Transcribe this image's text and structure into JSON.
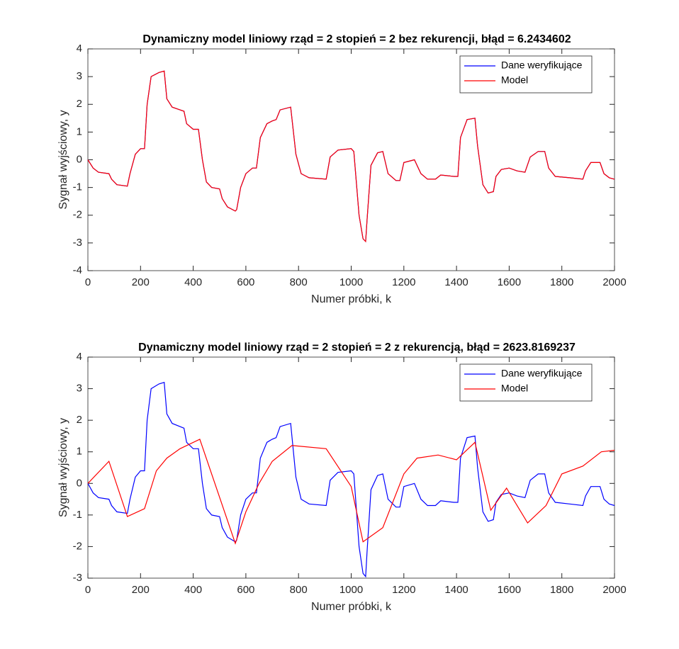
{
  "chart_data": [
    {
      "type": "line",
      "title": "Dynamiczny model liniowy rząd = 2 stopień = 2 bez rekurencji, błąd = 6.2434602",
      "xlabel": "Numer próbki, k",
      "ylabel": "Sygnał wyjściowy, y",
      "xlim": [
        0,
        2000
      ],
      "xticks": [
        0,
        200,
        400,
        600,
        800,
        1000,
        1200,
        1400,
        1600,
        1800,
        2000
      ],
      "ylim": [
        -4,
        4
      ],
      "yticks": [
        -4,
        -3,
        -2,
        -1,
        0,
        1,
        2,
        3,
        4
      ],
      "legend": "upper right",
      "series": [
        {
          "name": "Dane weryfikujące",
          "color": "#0000ff",
          "x": [
            0,
            20,
            40,
            80,
            90,
            110,
            150,
            160,
            180,
            200,
            215,
            225,
            240,
            270,
            290,
            300,
            320,
            350,
            365,
            375,
            400,
            420,
            435,
            450,
            470,
            500,
            510,
            530,
            560,
            565,
            580,
            600,
            625,
            640,
            655,
            680,
            700,
            715,
            730,
            770,
            790,
            810,
            840,
            905,
            920,
            950,
            1000,
            1010,
            1030,
            1045,
            1055,
            1060,
            1075,
            1100,
            1120,
            1140,
            1170,
            1185,
            1200,
            1240,
            1265,
            1290,
            1320,
            1340,
            1390,
            1405,
            1415,
            1440,
            1470,
            1480,
            1500,
            1520,
            1540,
            1550,
            1570,
            1600,
            1630,
            1660,
            1680,
            1710,
            1735,
            1750,
            1775,
            1830,
            1880,
            1890,
            1910,
            1945,
            1960,
            1980,
            2000
          ],
          "values": [
            0,
            -0.3,
            -0.45,
            -0.5,
            -0.7,
            -0.9,
            -0.95,
            -0.5,
            0.2,
            0.4,
            0.4,
            2.0,
            3.0,
            3.15,
            3.2,
            2.2,
            1.9,
            1.8,
            1.75,
            1.3,
            1.1,
            1.1,
            0,
            -0.8,
            -1.0,
            -1.05,
            -1.4,
            -1.7,
            -1.85,
            -1.8,
            -1.0,
            -0.5,
            -0.3,
            -0.3,
            0.8,
            1.3,
            1.4,
            1.45,
            1.8,
            1.9,
            0.2,
            -0.5,
            -0.65,
            -0.7,
            0.1,
            0.35,
            0.4,
            0.3,
            -2.0,
            -2.85,
            -2.95,
            -2.2,
            -0.2,
            0.25,
            0.3,
            -0.5,
            -0.75,
            -0.75,
            -0.1,
            0,
            -0.5,
            -0.7,
            -0.7,
            -0.55,
            -0.6,
            -0.6,
            0.8,
            1.45,
            1.5,
            0.5,
            -0.9,
            -1.2,
            -1.15,
            -0.6,
            -0.35,
            -0.3,
            -0.4,
            -0.45,
            0.1,
            0.3,
            0.3,
            -0.3,
            -0.6,
            -0.65,
            -0.7,
            -0.4,
            -0.1,
            -0.1,
            -0.5,
            -0.65,
            -0.7
          ]
        },
        {
          "name": "Model",
          "color": "#ff0000",
          "x": [
            0,
            20,
            40,
            80,
            90,
            110,
            150,
            160,
            180,
            200,
            215,
            225,
            240,
            270,
            290,
            300,
            320,
            350,
            365,
            375,
            400,
            420,
            435,
            450,
            470,
            500,
            510,
            530,
            560,
            565,
            580,
            600,
            625,
            640,
            655,
            680,
            700,
            715,
            730,
            770,
            790,
            810,
            840,
            905,
            920,
            950,
            1000,
            1010,
            1030,
            1045,
            1055,
            1060,
            1075,
            1100,
            1120,
            1140,
            1170,
            1185,
            1200,
            1240,
            1265,
            1290,
            1320,
            1340,
            1390,
            1405,
            1415,
            1440,
            1470,
            1480,
            1500,
            1520,
            1540,
            1550,
            1570,
            1600,
            1630,
            1660,
            1680,
            1710,
            1735,
            1750,
            1775,
            1830,
            1880,
            1890,
            1910,
            1945,
            1960,
            1980,
            2000
          ],
          "values": [
            0,
            -0.3,
            -0.45,
            -0.5,
            -0.7,
            -0.9,
            -0.95,
            -0.5,
            0.2,
            0.4,
            0.4,
            2.0,
            3.0,
            3.15,
            3.2,
            2.2,
            1.9,
            1.8,
            1.75,
            1.3,
            1.1,
            1.1,
            0,
            -0.8,
            -1.0,
            -1.05,
            -1.4,
            -1.7,
            -1.85,
            -1.8,
            -1.0,
            -0.5,
            -0.3,
            -0.3,
            0.8,
            1.3,
            1.4,
            1.45,
            1.8,
            1.9,
            0.2,
            -0.5,
            -0.65,
            -0.7,
            0.1,
            0.35,
            0.4,
            0.3,
            -2.0,
            -2.85,
            -2.95,
            -2.2,
            -0.2,
            0.25,
            0.3,
            -0.5,
            -0.75,
            -0.75,
            -0.1,
            0,
            -0.5,
            -0.7,
            -0.7,
            -0.55,
            -0.6,
            -0.6,
            0.8,
            1.45,
            1.5,
            0.5,
            -0.9,
            -1.2,
            -1.15,
            -0.6,
            -0.35,
            -0.3,
            -0.4,
            -0.45,
            0.1,
            0.3,
            0.3,
            -0.3,
            -0.6,
            -0.65,
            -0.7,
            -0.4,
            -0.1,
            -0.1,
            -0.5,
            -0.65,
            -0.7
          ]
        }
      ]
    },
    {
      "type": "line",
      "title": "Dynamiczny model liniowy rząd = 2 stopień = 2 z rekurencją, błąd = 2623.8169237",
      "xlabel": "Numer próbki, k",
      "ylabel": "Sygnał wyjściowy, y",
      "xlim": [
        0,
        2000
      ],
      "xticks": [
        0,
        200,
        400,
        600,
        800,
        1000,
        1200,
        1400,
        1600,
        1800,
        2000
      ],
      "ylim": [
        -3,
        4
      ],
      "yticks": [
        -3,
        -2,
        -1,
        0,
        1,
        2,
        3,
        4
      ],
      "legend": "upper right",
      "series": [
        {
          "name": "Dane weryfikujące",
          "color": "#0000ff",
          "x": [
            0,
            20,
            40,
            80,
            90,
            110,
            150,
            160,
            180,
            200,
            215,
            225,
            240,
            270,
            290,
            300,
            320,
            350,
            365,
            375,
            400,
            420,
            435,
            450,
            470,
            500,
            510,
            530,
            560,
            565,
            580,
            600,
            625,
            640,
            655,
            680,
            700,
            715,
            730,
            770,
            790,
            810,
            840,
            905,
            920,
            950,
            1000,
            1010,
            1030,
            1045,
            1055,
            1060,
            1075,
            1100,
            1120,
            1140,
            1170,
            1185,
            1200,
            1240,
            1265,
            1290,
            1320,
            1340,
            1390,
            1405,
            1415,
            1440,
            1470,
            1480,
            1500,
            1520,
            1540,
            1550,
            1570,
            1600,
            1630,
            1660,
            1680,
            1710,
            1735,
            1750,
            1775,
            1830,
            1880,
            1890,
            1910,
            1945,
            1960,
            1980,
            2000
          ],
          "values": [
            0,
            -0.3,
            -0.45,
            -0.5,
            -0.7,
            -0.9,
            -0.95,
            -0.5,
            0.2,
            0.4,
            0.4,
            2.0,
            3.0,
            3.15,
            3.2,
            2.2,
            1.9,
            1.8,
            1.75,
            1.3,
            1.1,
            1.1,
            0,
            -0.8,
            -1.0,
            -1.05,
            -1.4,
            -1.7,
            -1.85,
            -1.8,
            -1.0,
            -0.5,
            -0.3,
            -0.3,
            0.8,
            1.3,
            1.4,
            1.45,
            1.8,
            1.9,
            0.2,
            -0.5,
            -0.65,
            -0.7,
            0.1,
            0.35,
            0.4,
            0.3,
            -2.0,
            -2.85,
            -2.95,
            -2.2,
            -0.2,
            0.25,
            0.3,
            -0.5,
            -0.75,
            -0.75,
            -0.1,
            0,
            -0.5,
            -0.7,
            -0.7,
            -0.55,
            -0.6,
            -0.6,
            0.8,
            1.45,
            1.5,
            0.5,
            -0.9,
            -1.2,
            -1.15,
            -0.6,
            -0.35,
            -0.3,
            -0.4,
            -0.45,
            0.1,
            0.3,
            0.3,
            -0.3,
            -0.6,
            -0.65,
            -0.7,
            -0.4,
            -0.1,
            -0.1,
            -0.5,
            -0.65,
            -0.7
          ]
        },
        {
          "name": "Model",
          "color": "#ff0000",
          "x": [
            0,
            80,
            150,
            215,
            260,
            300,
            350,
            425,
            560,
            600,
            650,
            700,
            775,
            905,
            1000,
            1045,
            1120,
            1200,
            1250,
            1330,
            1400,
            1470,
            1530,
            1590,
            1670,
            1740,
            1800,
            1880,
            1950,
            2000
          ],
          "values": [
            0,
            0.7,
            -1.05,
            -0.8,
            0.4,
            0.8,
            1.1,
            1.4,
            -1.9,
            -0.9,
            0,
            0.7,
            1.2,
            1.1,
            -0.1,
            -1.85,
            -1.4,
            0.3,
            0.8,
            0.9,
            0.75,
            1.3,
            -0.85,
            -0.15,
            -1.25,
            -0.7,
            0.3,
            0.55,
            1.0,
            1.05
          ]
        }
      ]
    }
  ]
}
